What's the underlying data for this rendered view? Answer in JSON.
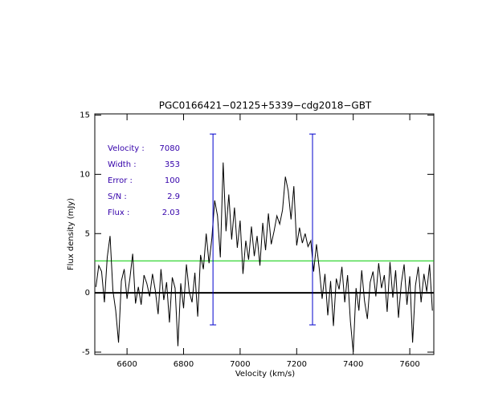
{
  "chart_data": {
    "type": "line",
    "title": "PGC0166421−02125+5339−cdg2018−GBT",
    "xlabel": "Velocity (km/s)",
    "ylabel": "Flux density (mJy)",
    "xlim": [
      6486,
      7685
    ],
    "ylim": [
      -5.2,
      15.1
    ],
    "xticks": [
      6600,
      6800,
      7000,
      7200,
      7400,
      7600
    ],
    "yticks": [
      -5,
      0,
      5,
      10,
      15
    ],
    "x": [
      6490,
      6500,
      6510,
      6520,
      6530,
      6540,
      6550,
      6560,
      6570,
      6580,
      6590,
      6600,
      6610,
      6620,
      6630,
      6640,
      6650,
      6660,
      6670,
      6680,
      6690,
      6700,
      6710,
      6720,
      6730,
      6740,
      6750,
      6760,
      6770,
      6780,
      6790,
      6800,
      6810,
      6820,
      6830,
      6840,
      6850,
      6860,
      6870,
      6880,
      6890,
      6900,
      6910,
      6920,
      6930,
      6940,
      6950,
      6960,
      6970,
      6980,
      6990,
      7000,
      7010,
      7020,
      7030,
      7040,
      7050,
      7060,
      7070,
      7080,
      7090,
      7100,
      7110,
      7120,
      7130,
      7140,
      7150,
      7160,
      7170,
      7180,
      7190,
      7200,
      7210,
      7220,
      7230,
      7240,
      7250,
      7260,
      7270,
      7280,
      7290,
      7300,
      7310,
      7320,
      7330,
      7340,
      7350,
      7360,
      7370,
      7380,
      7390,
      7400,
      7410,
      7420,
      7430,
      7440,
      7450,
      7460,
      7470,
      7480,
      7490,
      7500,
      7510,
      7520,
      7530,
      7540,
      7550,
      7560,
      7570,
      7580,
      7590,
      7600,
      7610,
      7620,
      7630,
      7640,
      7650,
      7660,
      7670,
      7680
    ],
    "series": [
      {
        "color": "#000000",
        "values": [
          0.5,
          2.3,
          1.8,
          -0.8,
          3.0,
          4.8,
          0.2,
          -1.5,
          -4.2,
          1.0,
          2.0,
          -0.5,
          1.2,
          3.3,
          -0.9,
          0.5,
          -1.0,
          1.5,
          0.8,
          -0.3,
          1.6,
          0.2,
          -1.8,
          2.0,
          -0.6,
          0.9,
          -2.5,
          1.3,
          0.4,
          -4.5,
          0.8,
          -1.3,
          2.4,
          0.1,
          -0.8,
          1.7,
          -2.0,
          3.2,
          2.0,
          5.0,
          2.5,
          4.6,
          7.8,
          6.5,
          3.0,
          11.0,
          5.2,
          8.3,
          4.5,
          7.2,
          3.8,
          6.1,
          1.6,
          4.4,
          2.8,
          5.6,
          3.1,
          4.8,
          2.3,
          5.9,
          3.6,
          6.7,
          4.1,
          5.2,
          6.5,
          5.8,
          7.0,
          9.8,
          8.6,
          6.2,
          9.0,
          4.0,
          5.5,
          4.2,
          5.0,
          3.9,
          4.4,
          1.8,
          4.1,
          2.0,
          -0.5,
          1.6,
          -1.9,
          1.0,
          -2.8,
          1.2,
          0.3,
          2.2,
          -0.8,
          1.5,
          -2.4,
          -5.0,
          0.4,
          -1.5,
          1.9,
          -0.7,
          -2.2,
          0.9,
          1.8,
          -0.3,
          2.5,
          0.4,
          1.5,
          -1.6,
          2.6,
          -0.4,
          1.9,
          -2.1,
          0.8,
          2.4,
          -1.0,
          1.4,
          -4.2,
          0.6,
          2.2,
          -0.8,
          1.6,
          0.1,
          2.4,
          -1.5
        ]
      }
    ],
    "markers": [
      6904,
      7256
    ],
    "marker_range": [
      -2.7,
      13.4
    ],
    "marker_color": "#0000cc",
    "noise_level": 2.7,
    "noise_color": "#00cc00",
    "annotations": [
      {
        "label": "Velocity :",
        "value": "7080"
      },
      {
        "label": "Width :",
        "value": "353"
      },
      {
        "label": "Error :",
        "value": "100"
      },
      {
        "label": "S/N :",
        "value": "2.9"
      },
      {
        "label": "Flux :",
        "value": "2.03"
      }
    ],
    "annotation_color": "#3300aa"
  }
}
